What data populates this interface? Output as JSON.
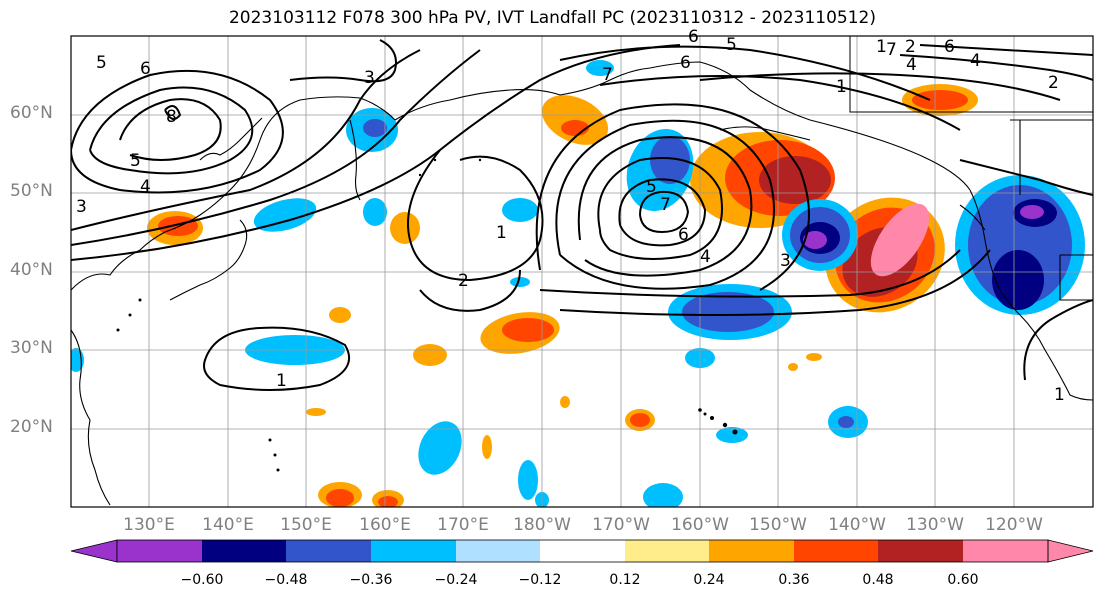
{
  "title": "2023103112 F078 300 hPa PV, IVT Landfall PC (2023110312 - 2023110512)",
  "map": {
    "lat_labels": [
      {
        "text": "60°N",
        "lat": 60
      },
      {
        "text": "50°N",
        "lat": 50
      },
      {
        "text": "40°N",
        "lat": 40
      },
      {
        "text": "30°N",
        "lat": 30
      },
      {
        "text": "20°N",
        "lat": 20
      }
    ],
    "lon_labels": [
      {
        "text": "130°E",
        "lon": 130
      },
      {
        "text": "140°E",
        "lon": 140
      },
      {
        "text": "150°E",
        "lon": 150
      },
      {
        "text": "160°E",
        "lon": 160
      },
      {
        "text": "170°E",
        "lon": 170
      },
      {
        "text": "180°W",
        "lon": 180
      },
      {
        "text": "170°W",
        "lon": 190
      },
      {
        "text": "160°W",
        "lon": 200
      },
      {
        "text": "150°W",
        "lon": 210
      },
      {
        "text": "140°W",
        "lon": 220
      },
      {
        "text": "130°W",
        "lon": 230
      },
      {
        "text": "120°W",
        "lon": 240
      }
    ],
    "contour_labels": [
      "5",
      "6",
      "8",
      "5",
      "4",
      "3",
      "3",
      "6",
      "7",
      "5",
      "6",
      "4",
      "2",
      "1",
      "1",
      "7",
      "6",
      "4",
      "3",
      "2",
      "1",
      "1",
      "5",
      "6",
      "7",
      "4",
      "2",
      "1"
    ]
  },
  "colorbar": {
    "ticks": [
      "−0.60",
      "−0.48",
      "−0.36",
      "−0.24",
      "−0.12",
      "0.12",
      "0.24",
      "0.36",
      "0.48",
      "0.60"
    ],
    "colors": {
      "lt_-0.72": "#9933cc",
      "-0.72_-0.60": "#9933cc",
      "-0.60_-0.48": "#000080",
      "-0.48_-0.36": "#3355cc",
      "-0.36_-0.24": "#00bfff",
      "-0.24_-0.12": "#b0e0ff",
      "-0.12_0.12": "#ffffff",
      "0.12_0.24": "#ffec8b",
      "0.24_0.36": "#ffa500",
      "0.36_0.48": "#ff4500",
      "0.48_0.60": "#b22222",
      "gt_0.60": "#ff88aa"
    }
  }
}
